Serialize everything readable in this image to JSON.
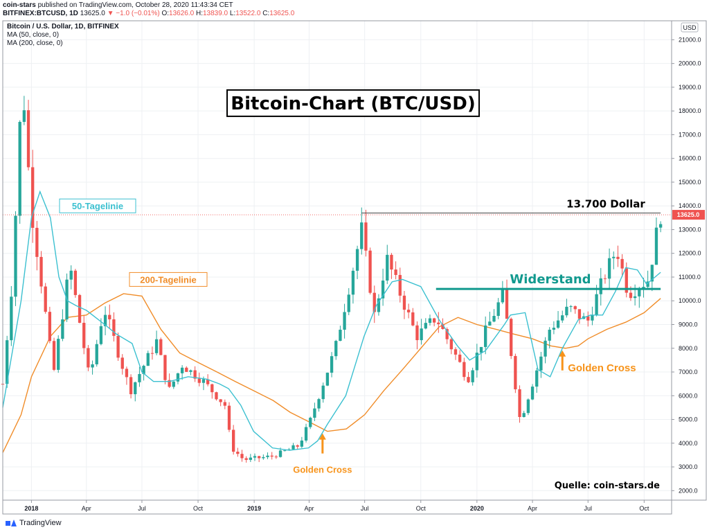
{
  "header": {
    "publisher": "coin-stars",
    "published_text": "published on TradingView.com, October 28, 2020 11:43:34 CET",
    "symbol": "BITFINEX:BTCUSD, 1D",
    "price": "13625.0",
    "change": "▼ −1.0 (−0.01%)",
    "o_label": "O:",
    "o_val": "13626.0",
    "h_label": "H:",
    "h_val": "13839.0",
    "l_label": "L:",
    "l_val": "13522.0",
    "c_label": "C:",
    "c_val": "13625.0"
  },
  "legend": {
    "line1": "Bitcoin / U.S. Dollar, 1D, BITFINEX",
    "line2": "MA (50, close, 0)",
    "line3": "MA (200, close, 0)"
  },
  "footer": {
    "brand": "TradingView"
  },
  "colors": {
    "up": "#26a69a",
    "down": "#ef5350",
    "ma50": "#3bc0d0",
    "ma200": "#f08c28",
    "annotation_orange": "#f7931a",
    "resistance": "#11998e",
    "grid": "#eef0f3"
  },
  "chart_data": {
    "type": "line",
    "title": "Bitcoin-Chart (BTC/USD)",
    "xlabel": "",
    "ylabel": "USD",
    "ylim": [
      1600,
      21800
    ],
    "y_ticks": [
      2000,
      3000,
      4000,
      5000,
      6000,
      7000,
      8000,
      9000,
      10000,
      11000,
      12000,
      13000,
      14000,
      15000,
      16000,
      17000,
      18000,
      19000,
      20000,
      21000
    ],
    "y_tick_labels": [
      "2000.0",
      "3000.0",
      "4000.0",
      "5000.0",
      "6000.0",
      "7000.0",
      "8000.0",
      "9000.0",
      "10000.0",
      "11000.0",
      "12000.0",
      "13000.0",
      "14000.0",
      "15000.0",
      "16000.0",
      "17000.0",
      "18000.0",
      "19000.0",
      "20000.0",
      "21000.0"
    ],
    "x_ticks": [
      "2018-01-01",
      "2018-04-01",
      "2018-07-01",
      "2018-10-01",
      "2019-01-01",
      "2019-04-01",
      "2019-07-01",
      "2019-10-01",
      "2020-01-01",
      "2020-04-01",
      "2020-07-01",
      "2020-10-01"
    ],
    "x_tick_labels": [
      "2018",
      "Apr",
      "Jul",
      "Oct",
      "2019",
      "Apr",
      "Jul",
      "Oct",
      "2020",
      "Apr",
      "Jul",
      "Oct"
    ],
    "x_bold": [
      true,
      false,
      false,
      false,
      true,
      false,
      false,
      false,
      true,
      false,
      false,
      false
    ],
    "x_range": [
      "2017-11-15",
      "2020-11-15"
    ],
    "last_price": 13625.0,
    "last_price_label": "13625.0",
    "series": [
      {
        "name": "Bitcoin / U.S. Dollar",
        "x": [
          "2017-11-15",
          "2017-12-01",
          "2017-12-17",
          "2017-12-31",
          "2018-01-16",
          "2018-02-06",
          "2018-03-05",
          "2018-04-06",
          "2018-04-30",
          "2018-06-12",
          "2018-07-25",
          "2018-08-14",
          "2018-09-05",
          "2018-10-10",
          "2018-11-14",
          "2018-11-25",
          "2018-12-15",
          "2019-01-31",
          "2019-03-15",
          "2019-04-02",
          "2019-05-14",
          "2019-06-26",
          "2019-07-17",
          "2019-08-06",
          "2019-09-24",
          "2019-10-26",
          "2019-12-17",
          "2020-01-15",
          "2020-02-13",
          "2020-03-12",
          "2020-03-13",
          "2020-04-29",
          "2020-05-31",
          "2020-06-30",
          "2020-07-27",
          "2020-08-17",
          "2020-09-05",
          "2020-10-08",
          "2020-10-21",
          "2020-10-28"
        ],
        "values": [
          6500,
          11000,
          19500,
          14000,
          11000,
          6900,
          11500,
          6700,
          9700,
          6200,
          8300,
          6200,
          7300,
          6600,
          5600,
          3800,
          3300,
          3450,
          3900,
          4900,
          8000,
          13000,
          9400,
          11800,
          8500,
          9300,
          6700,
          8700,
          10300,
          4900,
          5000,
          8800,
          9700,
          9100,
          11000,
          12200,
          10300,
          10900,
          12800,
          13625
        ]
      },
      {
        "name": "50-Tagelinie",
        "x": [
          "2017-11-15",
          "2017-12-15",
          "2018-01-01",
          "2018-01-15",
          "2018-02-01",
          "2018-02-15",
          "2018-03-01",
          "2018-03-15",
          "2018-04-01",
          "2018-05-01",
          "2018-05-20",
          "2018-06-15",
          "2018-07-01",
          "2018-07-20",
          "2018-08-15",
          "2018-09-15",
          "2018-10-15",
          "2018-11-05",
          "2018-11-20",
          "2018-12-10",
          "2018-12-31",
          "2019-01-31",
          "2019-02-28",
          "2019-03-31",
          "2019-04-15",
          "2019-05-01",
          "2019-05-31",
          "2019-06-30",
          "2019-07-20",
          "2019-08-15",
          "2019-09-01",
          "2019-10-01",
          "2019-10-31",
          "2019-11-30",
          "2019-12-20",
          "2020-01-15",
          "2020-02-15",
          "2020-02-25",
          "2020-03-20",
          "2020-04-10",
          "2020-04-30",
          "2020-05-20",
          "2020-06-15",
          "2020-07-05",
          "2020-07-25",
          "2020-08-15",
          "2020-09-01",
          "2020-09-20",
          "2020-10-05",
          "2020-10-28"
        ],
        "values": [
          5500,
          10000,
          13500,
          14600,
          13500,
          11000,
          10000,
          9800,
          9600,
          9000,
          8600,
          8200,
          7000,
          6600,
          6600,
          6800,
          6700,
          6500,
          6300,
          5600,
          4500,
          3800,
          3700,
          3800,
          4100,
          4800,
          6000,
          8500,
          9800,
          10800,
          10900,
          10600,
          9200,
          8100,
          7500,
          7900,
          9000,
          9400,
          9500,
          7100,
          6800,
          8000,
          9200,
          9400,
          9400,
          10400,
          11400,
          11300,
          10700,
          11200
        ]
      },
      {
        "name": "200-Tagelinie",
        "x": [
          "2017-11-15",
          "2017-12-15",
          "2018-01-01",
          "2018-02-01",
          "2018-03-01",
          "2018-04-01",
          "2018-05-01",
          "2018-06-01",
          "2018-07-01",
          "2018-08-01",
          "2018-09-01",
          "2018-10-01",
          "2018-11-01",
          "2018-12-01",
          "2019-01-01",
          "2019-02-01",
          "2019-03-01",
          "2019-04-01",
          "2019-05-01",
          "2019-06-01",
          "2019-07-01",
          "2019-08-01",
          "2019-09-01",
          "2019-10-01",
          "2019-10-31",
          "2019-12-01",
          "2020-01-01",
          "2020-02-01",
          "2020-03-01",
          "2020-04-01",
          "2020-05-01",
          "2020-05-25",
          "2020-06-15",
          "2020-07-01",
          "2020-08-01",
          "2020-09-01",
          "2020-10-01",
          "2020-10-28"
        ],
        "values": [
          3600,
          5200,
          6800,
          8500,
          9300,
          9400,
          9900,
          10300,
          10200,
          8800,
          7800,
          7400,
          7000,
          6600,
          6200,
          5800,
          5300,
          4900,
          4500,
          4600,
          5200,
          6200,
          7100,
          8000,
          8900,
          9300,
          9000,
          8800,
          8600,
          8400,
          8100,
          8000,
          8100,
          8400,
          8800,
          9100,
          9500,
          10100
        ]
      }
    ],
    "annotations": {
      "title_box": "Bitcoin-Chart (BTC/USD)",
      "ma50_label": "50-Tagelinie",
      "ma200_label": "200-Tagelinie",
      "resistance_label": "Widerstand",
      "resistance_value": 10500,
      "resistance_from": "2019-10-26",
      "resistance_to": "2020-10-28",
      "price_label": "13.700 Dollar",
      "price_level": 13700,
      "price_from": "2019-06-26",
      "price_to": "2020-10-28",
      "golden_cross_1": {
        "label": "Golden Cross",
        "date": "2019-04-23",
        "value": 4500
      },
      "golden_cross_2": {
        "label": "Golden Cross",
        "date": "2020-05-20",
        "value": 8000
      },
      "source": "Quelle: coin-stars.de"
    }
  }
}
